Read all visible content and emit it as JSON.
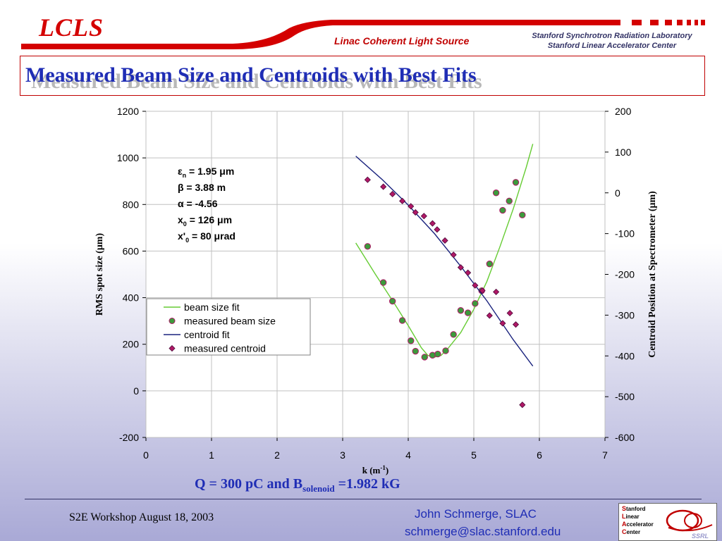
{
  "header": {
    "logo": "LCLS",
    "subtitle": "Linac Coherent Light Source",
    "lab_line1": "Stanford Synchrotron Radiation Laboratory",
    "lab_line2": "Stanford Linear Accelerator Center",
    "title": "Measured Beam Size and Centroids with Best Fits"
  },
  "caption": {
    "prefix": "Q = 300 pC and B",
    "subscript": "solenoid",
    "suffix": " =1.982 kG"
  },
  "footer": {
    "left": "S2E Workshop August 18, 2003",
    "name": "John Schmerge, SLAC",
    "email": "schmerge@slac.stanford.edu",
    "logo_lines": [
      "Stanford",
      "Linear",
      "Accelerator",
      "Center"
    ],
    "logo_corner": "SSRL"
  },
  "colors": {
    "title": "#1f2db5",
    "accent_red": "#d40000",
    "fit_green": "#66cc33",
    "fit_blue": "#1a237e",
    "point_green": "#3c9a3c",
    "point_purple": "#b01866"
  },
  "chart_data": {
    "type": "scatter",
    "xlabel": "k (m",
    "xlabel_sup": "-1",
    "xlabel_end": ")",
    "ylabel": "RMS spot size (",
    "ylabel_mu": "μ",
    "ylabel_end": "m)",
    "y2label": "Centroid Position at Spectrometer (",
    "y2label_mu": "μ",
    "y2label_end": "m)",
    "xlim": [
      0,
      7
    ],
    "ylim": [
      -200,
      1200
    ],
    "y2lim": [
      -600,
      200
    ],
    "xticks": [
      0,
      1,
      2,
      3,
      4,
      5,
      6,
      7
    ],
    "yticks": [
      -200,
      0,
      200,
      400,
      600,
      800,
      1000,
      1200
    ],
    "y2ticks": [
      -600,
      -500,
      -400,
      -300,
      -200,
      -100,
      0,
      100,
      200
    ],
    "grid": true,
    "legend_position": "left-middle",
    "annotation": [
      {
        "sym": "ε",
        "sub": "n",
        "rest": " = 1.95 ",
        "mu": "μ",
        "unit": "m"
      },
      {
        "sym": "β",
        "sub": "",
        "rest": " = 3.88 m",
        "mu": "",
        "unit": ""
      },
      {
        "sym": "α",
        "sub": "",
        "rest": " = -4.56",
        "mu": "",
        "unit": ""
      },
      {
        "sym": "x",
        "sub": "0",
        "rest": " = 126 ",
        "mu": "μ",
        "unit": "m"
      },
      {
        "sym": "x'",
        "sub": "0",
        "rest": " = 80 ",
        "mu": "μ",
        "unit": "rad"
      }
    ],
    "series": [
      {
        "name": "beam size fit",
        "kind": "line",
        "axis": "left",
        "x": [
          3.2,
          3.5,
          3.8,
          4.0,
          4.2,
          4.3,
          4.4,
          4.5,
          4.6,
          4.8,
          5.0,
          5.2,
          5.4,
          5.6,
          5.8,
          5.9
        ],
        "y": [
          635,
          500,
          370,
          280,
          185,
          152,
          145,
          152,
          180,
          250,
          350,
          470,
          620,
          780,
          960,
          1060
        ]
      },
      {
        "name": "measured beam size",
        "kind": "points",
        "axis": "left",
        "x": [
          3.38,
          3.62,
          3.76,
          3.91,
          4.04,
          4.11,
          4.25,
          4.37,
          4.45,
          4.57,
          4.69,
          4.8,
          4.91,
          5.02,
          5.12,
          5.24,
          5.34,
          5.44,
          5.54,
          5.64,
          5.74
        ],
        "y": [
          620,
          465,
          385,
          302,
          215,
          170,
          145,
          153,
          158,
          172,
          242,
          345,
          335,
          375,
          430,
          545,
          850,
          775,
          815,
          895,
          755
        ]
      },
      {
        "name": "centroid fit",
        "kind": "line",
        "axis": "right",
        "x": [
          3.2,
          3.6,
          4.0,
          4.4,
          4.8,
          5.2,
          5.6,
          5.9
        ],
        "y": [
          90,
          33,
          -30,
          -100,
          -180,
          -265,
          -360,
          -425
        ]
      },
      {
        "name": "measured centroid",
        "kind": "diamonds",
        "axis": "right",
        "x": [
          3.38,
          3.62,
          3.76,
          3.91,
          4.04,
          4.11,
          4.24,
          4.37,
          4.44,
          4.56,
          4.69,
          4.8,
          4.91,
          5.02,
          5.13,
          5.24,
          5.34,
          5.44,
          5.55,
          5.64,
          5.74
        ],
        "y": [
          32,
          15,
          -3,
          -20,
          -33,
          -48,
          -57,
          -75,
          -90,
          -117,
          -152,
          -183,
          -196,
          -227,
          -240,
          -301,
          -243,
          -320,
          -295,
          -323,
          -520
        ]
      }
    ]
  }
}
